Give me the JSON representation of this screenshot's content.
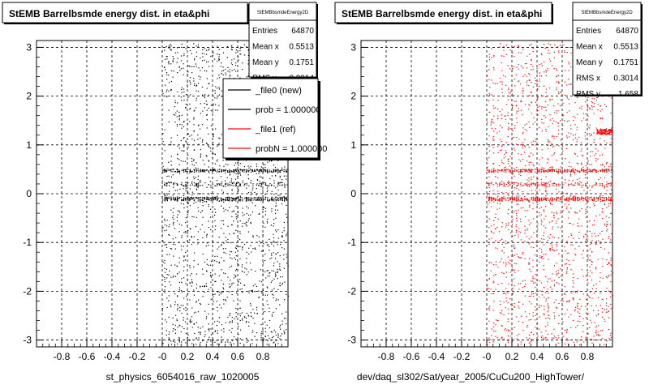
{
  "chart_data": [
    {
      "type": "scatter",
      "title": "StEMB Barrelbsmde energy dist. in eta&phi",
      "xlabel": "st_physics_6054016_raw_1020005",
      "ylabel": "",
      "xlim": [
        -1.0,
        1.0
      ],
      "ylim": [
        -3.14,
        3.14
      ],
      "x_ticks": [
        "-0.8",
        "-0.6",
        "-0.4",
        "-0.2",
        "-0",
        "0.2",
        "0.4",
        "0.6",
        "0.8"
      ],
      "y_ticks": [
        "-3",
        "-2",
        "-1",
        "0",
        "1",
        "2",
        "3"
      ],
      "grid": true,
      "marker_color": "#000000",
      "occupied_x_range": [
        0.0,
        1.0
      ],
      "stats": {
        "name": "StEMBbsmdeEnergy2D",
        "rows": [
          {
            "label": "Entries",
            "value": "64870"
          },
          {
            "label": "Mean x",
            "value": "0.5513"
          },
          {
            "label": "Mean y",
            "value": "0.1751"
          },
          {
            "label": "RMS x",
            "value": "0.3014"
          }
        ]
      },
      "legend": {
        "position": "top-right",
        "entries": [
          {
            "label": "_file0 (new)",
            "color": "#000000"
          },
          {
            "label": "prob = 1.000000",
            "color": "#000000"
          },
          {
            "label": "_file1 (ref)",
            "color": "#ff0000"
          },
          {
            "label": "probN = 1.000000",
            "color": "#ff0000"
          }
        ]
      }
    },
    {
      "type": "scatter",
      "title": "StEMB Barrelbsmde energy dist. in eta&phi",
      "xlabel": "dev/daq_sl302/Sat/year_2005/CuCu200_HighTower/",
      "ylabel": "",
      "xlim": [
        -1.0,
        1.0
      ],
      "ylim": [
        -3.14,
        3.14
      ],
      "x_ticks": [
        "-0.8",
        "-0.6",
        "-0.4",
        "-0.2",
        "-0",
        "0.2",
        "0.4",
        "0.6",
        "0.8"
      ],
      "y_ticks": [
        "-3",
        "-2",
        "-1",
        "0",
        "1",
        "2",
        "3"
      ],
      "grid": true,
      "marker_color": "#ff0000",
      "occupied_x_range": [
        0.0,
        1.0
      ],
      "stats": {
        "name": "StEMBbsmdeEnergy2D",
        "rows": [
          {
            "label": "Entries",
            "value": "64870"
          },
          {
            "label": "Mean x",
            "value": "0.5513"
          },
          {
            "label": "Mean y",
            "value": "0.1751"
          },
          {
            "label": "RMS x",
            "value": "0.3014"
          },
          {
            "label": "RMS y",
            "value": "1.658"
          }
        ]
      }
    }
  ]
}
